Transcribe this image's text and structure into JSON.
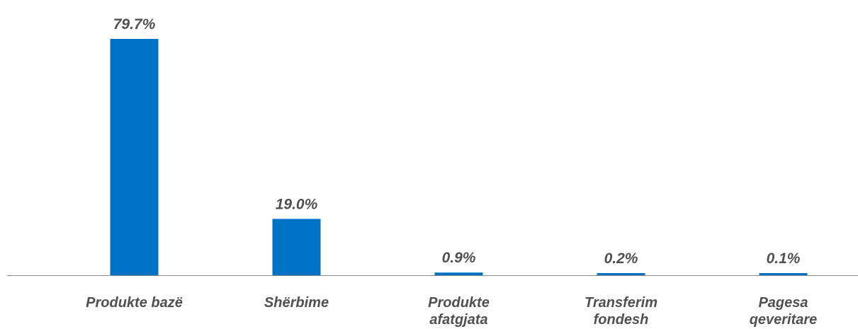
{
  "chart_data": {
    "type": "bar",
    "categories": [
      [
        "Produkte bazë"
      ],
      [
        "Shërbime"
      ],
      [
        "Produkte",
        "afatgjata"
      ],
      [
        "Transferim",
        "fondesh"
      ],
      [
        "Pagesa",
        "qeveritare"
      ]
    ],
    "values": [
      79.7,
      19.0,
      0.9,
      0.2,
      0.1
    ],
    "value_labels": [
      "79.7%",
      "19.0%",
      "0.9%",
      "0.2%",
      "0.1%"
    ],
    "ylim": [
      0,
      100
    ],
    "grid": false,
    "legend": "none",
    "bar_color": "#0072C6",
    "axis_color": "#8a8a8a",
    "text_color": "#505050"
  }
}
